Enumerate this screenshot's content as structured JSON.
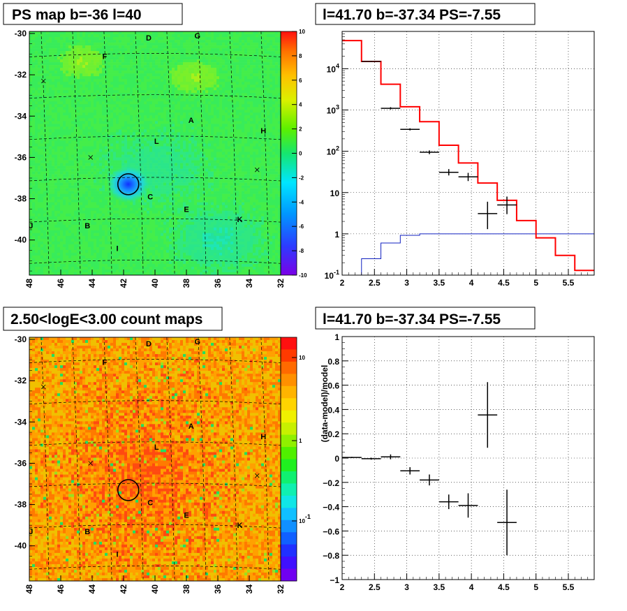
{
  "chart_data": [
    {
      "type": "heatmap",
      "title": "PS map b=-36 l=40",
      "x_ticks": [
        "48",
        "46",
        "44",
        "42",
        "40",
        "38",
        "36",
        "34",
        "32"
      ],
      "y_ticks": [
        "-30",
        "-32",
        "-34",
        "-36",
        "-38",
        "-40"
      ],
      "xlim": [
        48,
        32
      ],
      "ylim": [
        -41.7,
        -29.9
      ],
      "colorbar": {
        "range": [
          -10,
          10
        ],
        "ticks": [
          "10",
          "8",
          "6",
          "4",
          "2",
          "0",
          "-2",
          "-4",
          "-6",
          "-8",
          "-10"
        ]
      },
      "source_labels": [
        {
          "t": "D",
          "l": 40.4,
          "b": -30.2
        },
        {
          "t": "G",
          "l": 37.3,
          "b": -30.1
        },
        {
          "t": "F",
          "l": 43.2,
          "b": -31.1
        },
        {
          "t": "A",
          "l": 37.7,
          "b": -34.2
        },
        {
          "t": "H",
          "l": 33.1,
          "b": -34.7
        },
        {
          "t": "L",
          "l": 39.9,
          "b": -35.2
        },
        {
          "t": "C",
          "l": 40.3,
          "b": -37.9
        },
        {
          "t": "E",
          "l": 38.0,
          "b": -38.5
        },
        {
          "t": "K",
          "l": 34.6,
          "b": -39.0
        },
        {
          "t": "J",
          "l": 47.9,
          "b": -39.3
        },
        {
          "t": "B",
          "l": 44.3,
          "b": -39.3
        },
        {
          "t": "I",
          "l": 42.4,
          "b": -40.4
        }
      ],
      "markers": [
        {
          "l": 47.1,
          "b": -32.3
        },
        {
          "l": 44.1,
          "b": -36.0
        },
        {
          "l": 33.5,
          "b": -36.6
        }
      ],
      "circle": {
        "l": 41.7,
        "b": -37.3
      }
    },
    {
      "type": "line",
      "title": "l=41.70 b=-37.34 PS=-7.55",
      "x_ticks": [
        "2",
        "2.5",
        "3",
        "3.5",
        "4",
        "4.5",
        "5",
        "5.5"
      ],
      "y_ticks": [
        "10^4",
        "10^3",
        "10^2",
        "10",
        "1",
        "10^-1"
      ],
      "y_scale": "log",
      "xlim": [
        2,
        5.9
      ],
      "ylim": [
        0.1,
        80000
      ],
      "model_red": {
        "edges": [
          2,
          2.3,
          2.6,
          2.9,
          3.2,
          3.5,
          3.8,
          4.1,
          4.4,
          4.7,
          5.0,
          5.3,
          5.6,
          5.9
        ],
        "values": [
          48000,
          15000,
          4200,
          1200,
          520,
          140,
          52,
          17,
          6.5,
          2.1,
          0.8,
          0.3,
          0.13
        ]
      },
      "model_blue": {
        "edges": [
          2,
          2.3,
          2.6,
          2.9,
          3.2,
          3.5,
          3.8,
          4.1,
          4.4,
          4.7,
          5.0,
          5.3,
          5.6,
          5.9
        ],
        "values": [
          0.05,
          0.25,
          0.6,
          0.92,
          1.0,
          1.0,
          1.0,
          1.0,
          1.0,
          1.0,
          1.0,
          1.0,
          1.0
        ]
      },
      "data": [
        {
          "x": 2.45,
          "y": 15000,
          "xe": 0.15,
          "ylo": 14600,
          "yhi": 15400
        },
        {
          "x": 2.75,
          "y": 1100,
          "xe": 0.15,
          "ylo": 1030,
          "yhi": 1170
        },
        {
          "x": 3.05,
          "y": 340,
          "xe": 0.15,
          "ylo": 320,
          "yhi": 360
        },
        {
          "x": 3.35,
          "y": 95,
          "xe": 0.15,
          "ylo": 85,
          "yhi": 105
        },
        {
          "x": 3.65,
          "y": 31,
          "xe": 0.15,
          "ylo": 26,
          "yhi": 37
        },
        {
          "x": 3.95,
          "y": 24,
          "xe": 0.15,
          "ylo": 19,
          "yhi": 30
        },
        {
          "x": 4.25,
          "y": 3.1,
          "xe": 0.15,
          "ylo": 1.3,
          "yhi": 6.0
        },
        {
          "x": 4.55,
          "y": 5.0,
          "xe": 0.15,
          "ylo": 3.0,
          "yhi": 8.0
        }
      ]
    },
    {
      "type": "heatmap",
      "title": "2.50<logE<3.00 count maps",
      "x_ticks": [
        "48",
        "46",
        "44",
        "42",
        "40",
        "38",
        "36",
        "34",
        "32"
      ],
      "y_ticks": [
        "-30",
        "-32",
        "-34",
        "-36",
        "-38",
        "-40"
      ],
      "xlim": [
        48,
        32
      ],
      "ylim": [
        -41.7,
        -29.9
      ],
      "colorbar": {
        "scale": "log",
        "ticks": [
          "10",
          "1",
          "10^-1"
        ]
      },
      "source_labels": [
        {
          "t": "D",
          "l": 40.4,
          "b": -30.2
        },
        {
          "t": "G",
          "l": 37.3,
          "b": -30.1
        },
        {
          "t": "F",
          "l": 43.2,
          "b": -31.1
        },
        {
          "t": "A",
          "l": 37.7,
          "b": -34.2
        },
        {
          "t": "H",
          "l": 33.1,
          "b": -34.7
        },
        {
          "t": "L",
          "l": 39.9,
          "b": -35.2
        },
        {
          "t": "C",
          "l": 40.3,
          "b": -37.9
        },
        {
          "t": "E",
          "l": 38.0,
          "b": -38.5
        },
        {
          "t": "K",
          "l": 34.6,
          "b": -39.0
        },
        {
          "t": "J",
          "l": 47.9,
          "b": -39.3
        },
        {
          "t": "B",
          "l": 44.3,
          "b": -39.3
        },
        {
          "t": "I",
          "l": 42.4,
          "b": -40.4
        }
      ],
      "markers": [
        {
          "l": 47.1,
          "b": -32.3
        },
        {
          "l": 44.1,
          "b": -36.0
        },
        {
          "l": 33.5,
          "b": -36.6
        }
      ],
      "circle": {
        "l": 41.7,
        "b": -37.3
      }
    },
    {
      "type": "scatter",
      "title": "l=41.70 b=-37.34 PS=-7.55",
      "ylabel": "(data-model)/model",
      "x_ticks": [
        "2",
        "2.5",
        "3",
        "3.5",
        "4",
        "4.5",
        "5",
        "5.5"
      ],
      "y_ticks": [
        "1",
        "0.8",
        "0.6",
        "0.4",
        "0.2",
        "0",
        "-0.2",
        "-0.4",
        "-0.6",
        "-0.8",
        "-1"
      ],
      "xlim": [
        2,
        5.9
      ],
      "ylim": [
        -1,
        1
      ],
      "data": [
        {
          "x": 2.15,
          "y": 0.005,
          "xe": 0.15,
          "ye": 0.005
        },
        {
          "x": 2.45,
          "y": -0.005,
          "xe": 0.15,
          "ye": 0.008
        },
        {
          "x": 2.75,
          "y": 0.01,
          "xe": 0.15,
          "ye": 0.02
        },
        {
          "x": 3.05,
          "y": -0.105,
          "xe": 0.15,
          "ye": 0.03
        },
        {
          "x": 3.35,
          "y": -0.18,
          "xe": 0.15,
          "ye": 0.045
        },
        {
          "x": 3.65,
          "y": -0.36,
          "xe": 0.15,
          "ye": 0.06
        },
        {
          "x": 3.95,
          "y": -0.39,
          "xe": 0.15,
          "ye": 0.1
        },
        {
          "x": 4.25,
          "y": 0.355,
          "xe": 0.15,
          "ye": 0.27
        },
        {
          "x": 4.55,
          "y": -0.53,
          "xe": 0.15,
          "ye": 0.27
        }
      ]
    }
  ]
}
